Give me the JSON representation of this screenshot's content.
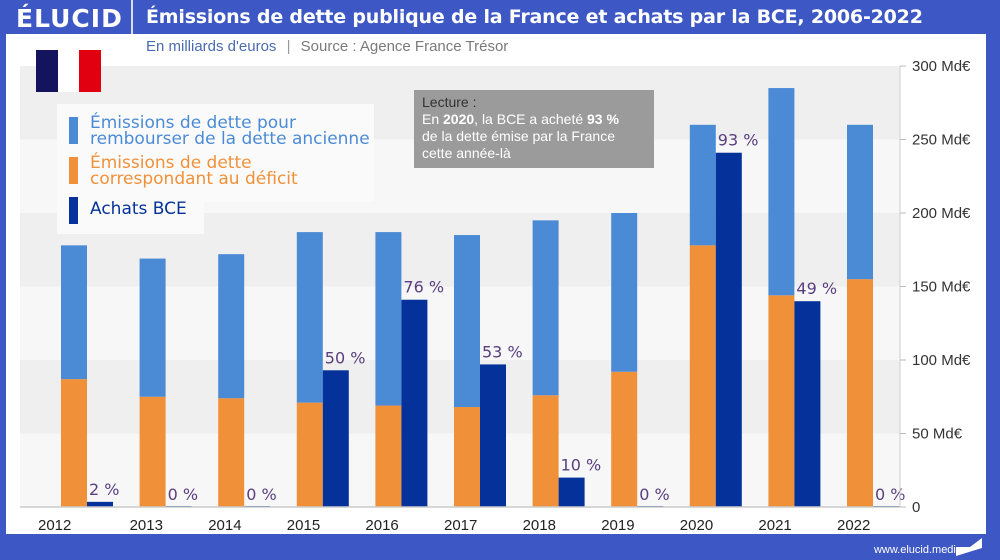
{
  "header": {
    "logo": "ÉLUCID",
    "title": "Émissions de dette publique de la France et achats par la BCE, 2006-2022"
  },
  "subtitle": {
    "unit": "En milliards d'euros",
    "separator": "|",
    "source": "Source : Agence France Trésor"
  },
  "flag": {
    "colors": [
      "#13135e",
      "#ffffff",
      "#e1000f"
    ]
  },
  "legend": [
    {
      "label_line1": "Émissions de dette pour",
      "label_line2": "rembourser de la dette ancienne",
      "color": "#4b8bd6"
    },
    {
      "label_line1": "Émissions de dette",
      "label_line2": "correspondant au déficit",
      "color": "#f0913a"
    },
    {
      "label_line1": "Achats BCE",
      "label_line2": "",
      "color": "#05329a"
    }
  ],
  "annotation": {
    "title": "Lecture :",
    "prefix": "En ",
    "year": "2020",
    "middle": ", la BCE a acheté ",
    "pct": "93 %",
    "line3": "de la dette émise par la France",
    "line4": "cette année-là"
  },
  "footer": {
    "url": "www.elucid.media"
  },
  "chart_data": {
    "type": "bar",
    "title": "Émissions de dette publique de la France et achats par la BCE, 2006-2022",
    "subtitle": "En milliards d'euros | Source : Agence France Trésor",
    "categories": [
      "2012",
      "2013",
      "2014",
      "2015",
      "2016",
      "2017",
      "2018",
      "2019",
      "2020",
      "2021",
      "2022"
    ],
    "series": [
      {
        "name": "Émissions de dette correspondant au déficit",
        "stack": "emissions",
        "color": "#f0913a",
        "values": [
          87,
          75,
          74,
          71,
          69,
          68,
          76,
          92,
          178,
          144,
          155
        ]
      },
      {
        "name": "Émissions de dette pour rembourser de la dette ancienne",
        "stack": "emissions",
        "color": "#4b8bd6",
        "values": [
          91,
          94,
          98,
          116,
          118,
          117,
          119,
          108,
          82,
          141,
          105
        ]
      },
      {
        "name": "Achats BCE",
        "stack": "bce",
        "color": "#05329a",
        "values": [
          3.5,
          0,
          0,
          93,
          141,
          97,
          20,
          0,
          241,
          140,
          0
        ]
      }
    ],
    "totals": [
      178,
      169,
      172,
      187,
      187,
      185,
      195,
      200,
      260,
      285,
      260
    ],
    "data_labels": [
      "2 %",
      "0 %",
      "0 %",
      "50 %",
      "76 %",
      "53 %",
      "10 %",
      "0 %",
      "93 %",
      "49 %",
      "0 %"
    ],
    "yticks": [
      "0",
      "50 Md€",
      "100 Md€",
      "150 Md€",
      "200 Md€",
      "250 Md€",
      "300 Md€"
    ],
    "ytick_values": [
      0,
      50,
      100,
      150,
      200,
      250,
      300
    ],
    "ylim": [
      0,
      300
    ],
    "xlabel": "",
    "ylabel": "",
    "y_axis_side": "right",
    "grid": "alternating horizontal bands",
    "legend_position": "top-left"
  }
}
